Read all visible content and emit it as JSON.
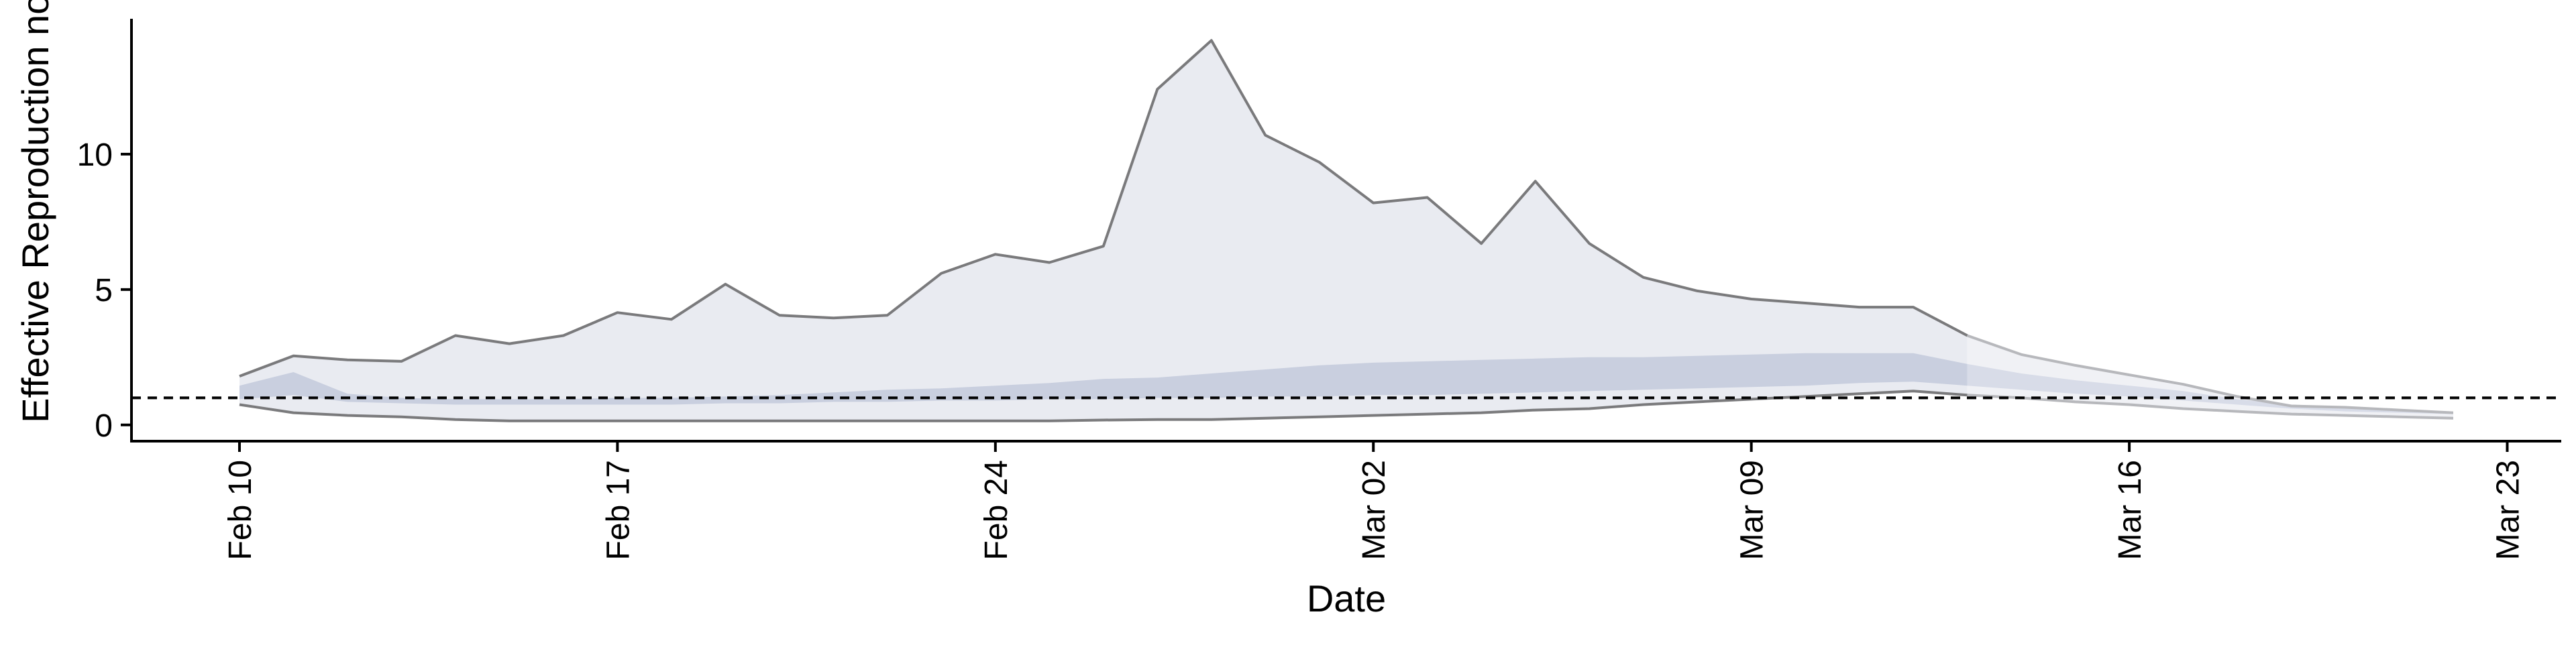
{
  "chart_data": {
    "type": "area",
    "xlabel": "Date",
    "ylabel": "Effective Reproduction no.",
    "x_start": "2020-02-10",
    "xlim": [
      "2020-02-08",
      "2020-03-24"
    ],
    "ylim": [
      -0.6,
      15
    ],
    "x_ticks": [
      {
        "date": "2020-02-10",
        "label": "Feb 10"
      },
      {
        "date": "2020-02-17",
        "label": "Feb 17"
      },
      {
        "date": "2020-02-24",
        "label": "Feb 24"
      },
      {
        "date": "2020-03-02",
        "label": "Mar 02"
      },
      {
        "date": "2020-03-09",
        "label": "Mar 09"
      },
      {
        "date": "2020-03-16",
        "label": "Mar 16"
      },
      {
        "date": "2020-03-23",
        "label": "Mar 23"
      }
    ],
    "y_ticks": [
      0,
      5,
      10
    ],
    "reference_line": {
      "y": 1,
      "style": "dashed"
    },
    "series": [
      {
        "role": "upper_outer_bound",
        "values": [
          1.8,
          2.55,
          2.4,
          2.35,
          3.3,
          3.0,
          3.3,
          4.15,
          3.9,
          5.2,
          4.05,
          3.95,
          4.05,
          5.6,
          6.3,
          6.0,
          6.6,
          12.4,
          14.2,
          10.7,
          9.7,
          8.2,
          8.4,
          6.7,
          9.0,
          6.7,
          5.45,
          4.95,
          4.65,
          4.5,
          4.35,
          4.35,
          3.3,
          2.6,
          2.2,
          1.85,
          1.5,
          1.05,
          0.7,
          0.65,
          0.55,
          0.45
        ]
      },
      {
        "role": "upper_inner_bound",
        "values": [
          1.45,
          1.95,
          1.15,
          1.0,
          0.95,
          0.95,
          0.95,
          1.0,
          1.0,
          1.05,
          1.1,
          1.2,
          1.3,
          1.35,
          1.45,
          1.55,
          1.7,
          1.75,
          1.9,
          2.05,
          2.2,
          2.3,
          2.35,
          2.4,
          2.45,
          2.5,
          2.5,
          2.55,
          2.6,
          2.65,
          2.65,
          2.65,
          2.25,
          1.9,
          1.65,
          1.45,
          1.25,
          0.95,
          0.75,
          0.65,
          0.55,
          0.45
        ]
      },
      {
        "role": "lower_inner_bound",
        "values": [
          0.95,
          1.1,
          0.85,
          0.8,
          0.75,
          0.75,
          0.75,
          0.75,
          0.75,
          0.8,
          0.8,
          0.85,
          0.85,
          0.9,
          0.9,
          0.95,
          0.95,
          1.0,
          1.0,
          1.05,
          1.05,
          1.1,
          1.1,
          1.15,
          1.2,
          1.25,
          1.3,
          1.35,
          1.4,
          1.45,
          1.55,
          1.6,
          1.45,
          1.3,
          1.15,
          1.05,
          0.9,
          0.75,
          0.6,
          0.5,
          0.45,
          0.4
        ]
      },
      {
        "role": "lower_outer_bound",
        "values": [
          0.75,
          0.45,
          0.35,
          0.3,
          0.2,
          0.15,
          0.15,
          0.15,
          0.15,
          0.15,
          0.15,
          0.15,
          0.15,
          0.15,
          0.15,
          0.15,
          0.18,
          0.2,
          0.2,
          0.25,
          0.3,
          0.35,
          0.4,
          0.45,
          0.55,
          0.6,
          0.75,
          0.85,
          0.95,
          1.05,
          1.15,
          1.25,
          1.1,
          1.0,
          0.85,
          0.75,
          0.6,
          0.5,
          0.4,
          0.35,
          0.3,
          0.25
        ]
      }
    ],
    "colors": {
      "outer_band": "#e9ebf1",
      "outer_band_faded": "#f0f1f5",
      "inner_band": "#c9cfdf",
      "inner_band_faded": "#d8dce8",
      "bound_line": "#7a7a7c",
      "bound_line_faded": "#b7b8bc",
      "axis": "#000000",
      "reference_line": "#000000"
    },
    "grid": false,
    "legend": "none"
  }
}
